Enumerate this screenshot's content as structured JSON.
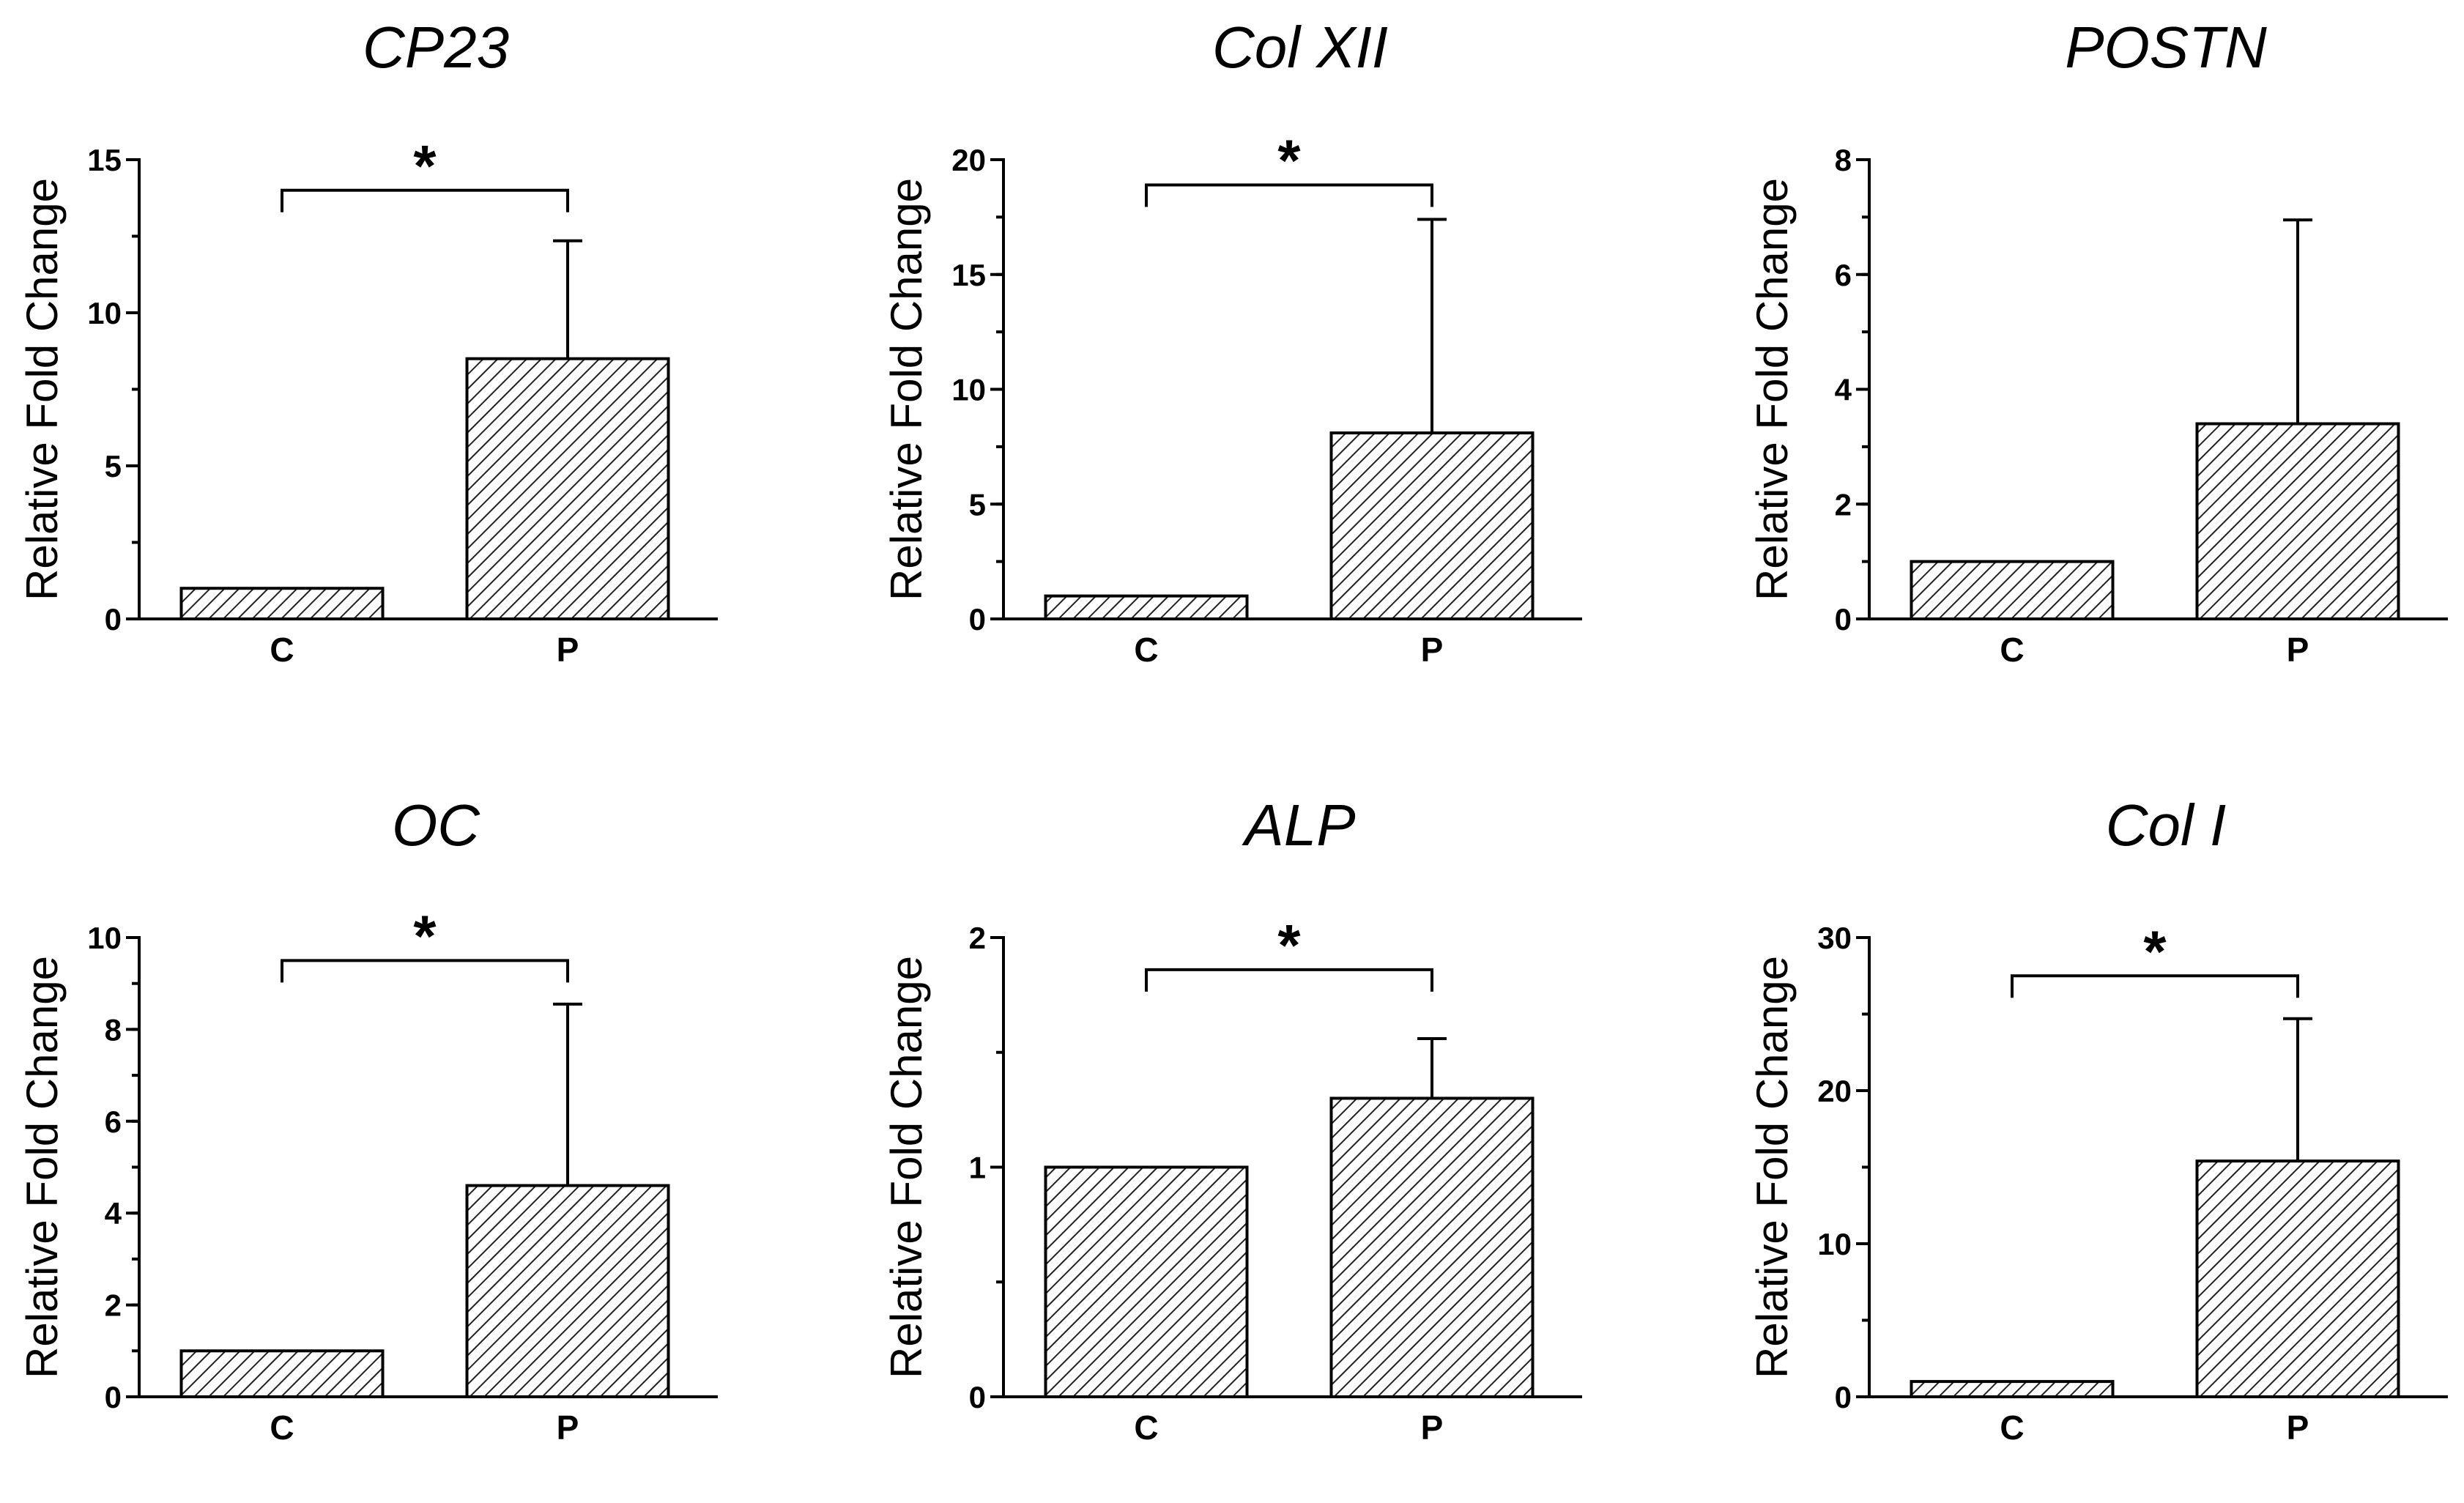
{
  "chart_data": [
    {
      "type": "bar",
      "title": "CP23",
      "ylabel": "Relative Fold Change",
      "categories": [
        "C",
        "P"
      ],
      "values": [
        1,
        8.5
      ],
      "errors": [
        0,
        3.85
      ],
      "ylim": [
        0,
        15
      ],
      "yticks": [
        0,
        5,
        10,
        15
      ],
      "minor_step": 2.5,
      "significance": "*",
      "bracket_level": 14.0,
      "fill": "diagonal-hatch"
    },
    {
      "type": "bar",
      "title": "Col XII",
      "ylabel": "Relative Fold Change",
      "categories": [
        "C",
        "P"
      ],
      "values": [
        1,
        8.1
      ],
      "errors": [
        0,
        9.3
      ],
      "ylim": [
        0,
        20
      ],
      "yticks": [
        0,
        5,
        10,
        15,
        20
      ],
      "minor_step": 2.5,
      "significance": "*",
      "bracket_level": 18.9,
      "fill": "diagonal-hatch"
    },
    {
      "type": "bar",
      "title": "POSTN",
      "ylabel": "Relative Fold Change",
      "categories": [
        "C",
        "P"
      ],
      "values": [
        1,
        3.4
      ],
      "errors": [
        0,
        3.55
      ],
      "ylim": [
        0,
        8
      ],
      "yticks": [
        0,
        2,
        4,
        6,
        8
      ],
      "minor_step": 1,
      "significance": "",
      "bracket_level": null,
      "fill": "diagonal-hatch"
    },
    {
      "type": "bar",
      "title": "OC",
      "ylabel": "Relative Fold Change",
      "categories": [
        "C",
        "P"
      ],
      "values": [
        1,
        4.6
      ],
      "errors": [
        0,
        3.95
      ],
      "ylim": [
        0,
        10
      ],
      "yticks": [
        0,
        2,
        4,
        6,
        8,
        10
      ],
      "minor_step": 1,
      "significance": "*",
      "bracket_level": 9.5,
      "fill": "diagonal-hatch"
    },
    {
      "type": "bar",
      "title": "ALP",
      "ylabel": "Relative Fold Change",
      "categories": [
        "C",
        "P"
      ],
      "values": [
        1,
        1.3
      ],
      "errors": [
        0,
        0.26
      ],
      "ylim": [
        0,
        2
      ],
      "yticks": [
        0,
        1,
        2
      ],
      "minor_step": 0.5,
      "significance": "*",
      "bracket_level": 1.86,
      "fill": "diagonal-hatch"
    },
    {
      "type": "bar",
      "title": "Col I",
      "ylabel": "Relative Fold Change",
      "categories": [
        "C",
        "P"
      ],
      "values": [
        1,
        15.4
      ],
      "errors": [
        0,
        9.3
      ],
      "ylim": [
        0,
        30
      ],
      "yticks": [
        0,
        10,
        20,
        30
      ],
      "minor_step": 5,
      "significance": "*",
      "bracket_level": 27.5,
      "fill": "diagonal-hatch"
    }
  ]
}
